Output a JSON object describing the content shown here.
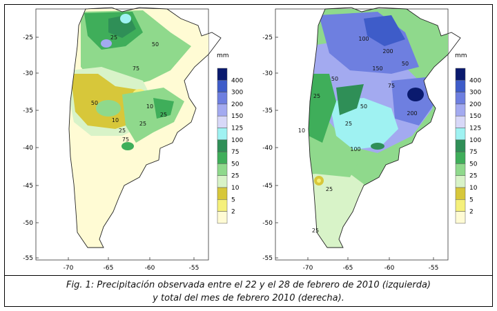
{
  "maps": [
    {
      "id": "left",
      "lat_labels": [
        "-25",
        "-30",
        "-35",
        "-40",
        "-45",
        "-50",
        "-55"
      ],
      "lon_labels": [
        "-70",
        "-65",
        "-60",
        "-55"
      ],
      "contour_labels": [
        "25",
        "50",
        "75",
        "10",
        "25",
        "50",
        "10",
        "25",
        "75",
        "25"
      ]
    },
    {
      "id": "right",
      "lat_labels": [
        "-25",
        "-30",
        "-35",
        "-40",
        "-45",
        "-50",
        "-55"
      ],
      "lon_labels": [
        "-70",
        "-65",
        "-60",
        "-55"
      ],
      "contour_labels": [
        "100",
        "150",
        "200",
        "50",
        "75",
        "200",
        "100",
        "25",
        "50",
        "25",
        "50",
        "25",
        "25",
        "10"
      ]
    }
  ],
  "legend": {
    "unit": "mm",
    "levels": [
      "400",
      "300",
      "200",
      "150",
      "125",
      "100",
      "75",
      "50",
      "25",
      "10",
      "5",
      "2"
    ],
    "colors": [
      "#0a1a6e",
      "#3e5cc9",
      "#6e7fe0",
      "#a3aaf0",
      "#d8d8f8",
      "#9ff2f2",
      "#2f8f57",
      "#3fae5a",
      "#8fd98c",
      "#d8f3c8",
      "#d7c73a",
      "#f5f07a",
      "#fffbd4"
    ]
  },
  "caption": {
    "line1": "Fig. 1: Precipitación observada entre el 22 y el 28 de febrero de 2010 (izquierda)",
    "line2": "y total del mes de febrero 2010 (derecha)."
  }
}
